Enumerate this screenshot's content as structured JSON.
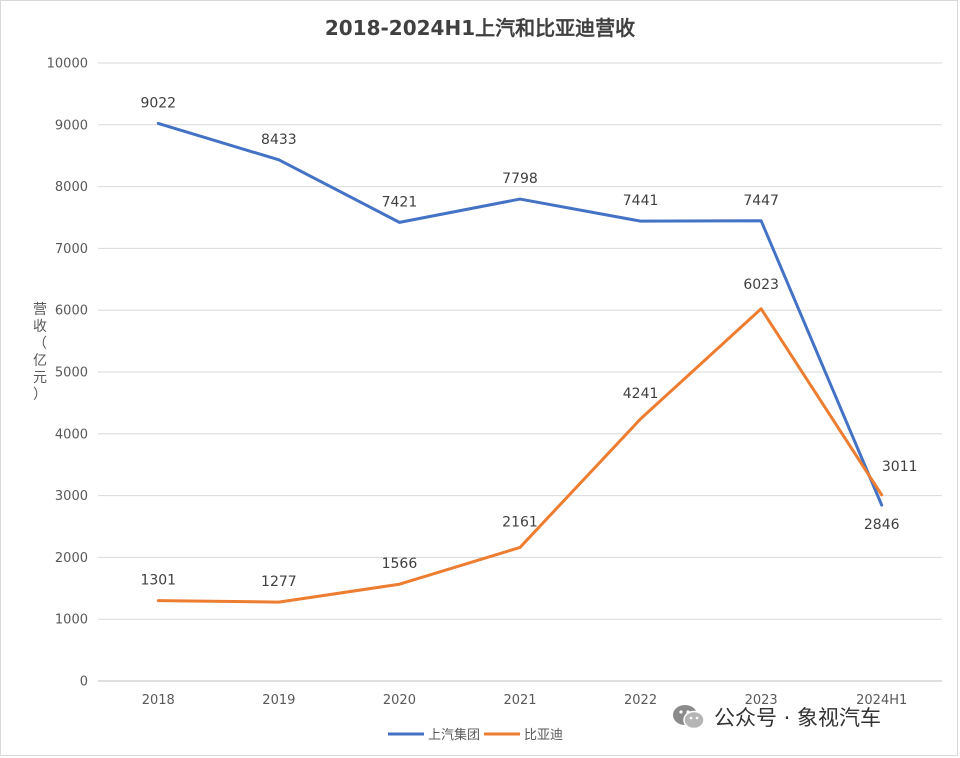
{
  "chart_data": {
    "type": "line",
    "title": "2018-2024H1上汽和比亚迪营收",
    "ylabel": "营收（亿元）",
    "xlabel": "",
    "categories": [
      "2018",
      "2019",
      "2020",
      "2021",
      "2022",
      "2023",
      "2024H1"
    ],
    "y_ticks": [
      "0",
      "1000",
      "2000",
      "3000",
      "4000",
      "5000",
      "6000",
      "7000",
      "8000",
      "9000",
      "10000"
    ],
    "ylim": [
      0,
      10000
    ],
    "grid": true,
    "legend_position": "bottom",
    "series": [
      {
        "name": "上汽集团",
        "color": "#4472c4",
        "values": [
          9022,
          8433,
          7421,
          7798,
          7441,
          7447,
          2846
        ],
        "labels": [
          "9022",
          "8433",
          "7421",
          "7798",
          "7441",
          "7447",
          "2846"
        ]
      },
      {
        "name": "比亚迪",
        "color": "#ed7d31",
        "values": [
          1301,
          1277,
          1566,
          2161,
          4241,
          6023,
          3011
        ],
        "labels": [
          "1301",
          "1277",
          "1566",
          "2161",
          "4241",
          "6023",
          "3011"
        ]
      }
    ]
  },
  "watermark": {
    "text": "公众号 · 象视汽车",
    "icon": "wechat-icon"
  }
}
